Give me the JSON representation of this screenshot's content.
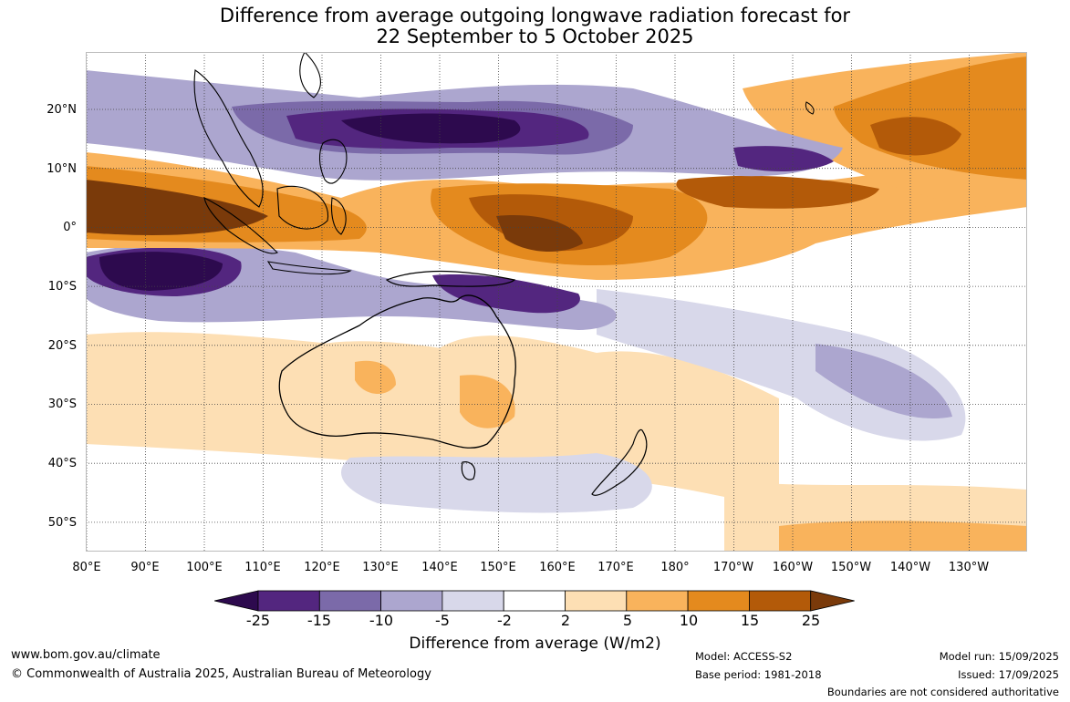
{
  "title": {
    "line1": "Difference from average outgoing longwave radiation forecast for",
    "line2": "22 September to 5 October 2025"
  },
  "map": {
    "lat_labels": [
      "20°N",
      "10°N",
      "0°",
      "10°S",
      "20°S",
      "30°S",
      "40°S",
      "50°S"
    ],
    "lon_labels": [
      "80°E",
      "90°E",
      "100°E",
      "110°E",
      "120°E",
      "130°E",
      "140°E",
      "150°E",
      "160°E",
      "170°E",
      "180°",
      "170°W",
      "160°W",
      "150°W",
      "140°W",
      "130°W"
    ],
    "colors": {
      "neg25": "#2d0a4e",
      "neg15": "#53267f",
      "neg10": "#7b6aa9",
      "neg5": "#aca6cf",
      "neg2": "#d8d8ea",
      "zero": "#ffffff",
      "pos2": "#fddfb4",
      "pos5": "#f9b35c",
      "pos10": "#e48a1e",
      "pos15": "#b35a09",
      "pos25": "#7a3a0a"
    }
  },
  "colorbar": {
    "ticks": [
      "-25",
      "-15",
      "-10",
      "-5",
      "-2",
      "2",
      "5",
      "10",
      "15",
      "25"
    ],
    "colors": [
      "#2d0a4e",
      "#53267f",
      "#7b6aa9",
      "#aca6cf",
      "#d8d8ea",
      "#ffffff",
      "#fddfb4",
      "#f9b35c",
      "#e48a1e",
      "#b35a09",
      "#7a3a0a"
    ],
    "label": "Difference from average (W/m2)"
  },
  "footer": {
    "url": "www.bom.gov.au/climate",
    "copyright": "© Commonwealth of Australia 2025, Australian Bureau of Meteorology",
    "model": "Model: ACCESS-S2",
    "base_period": "Base period: 1981-2018",
    "model_run": "Model run: 15/09/2025",
    "issued": "Issued: 17/09/2025",
    "boundaries": "Boundaries are not considered authoritative"
  }
}
